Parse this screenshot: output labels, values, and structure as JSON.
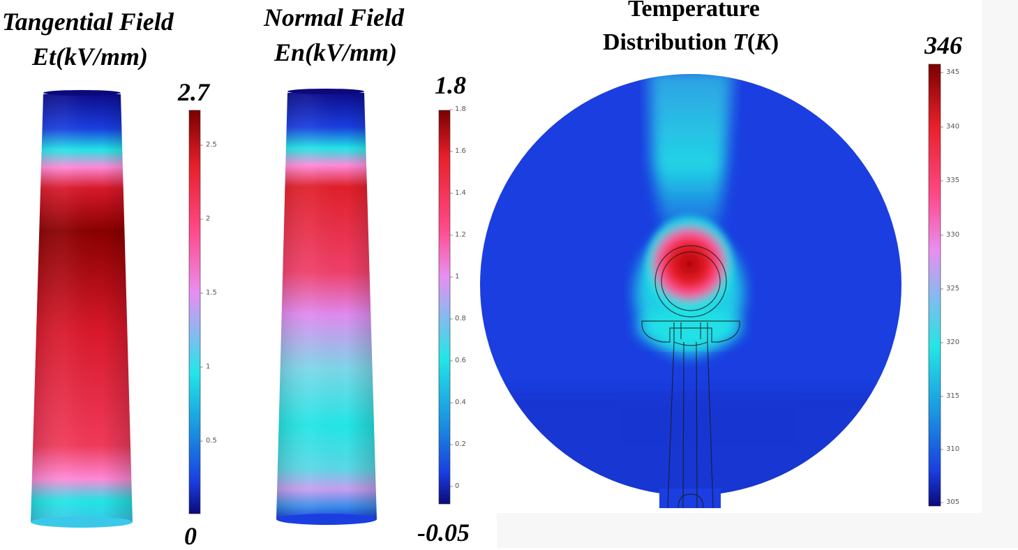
{
  "panels": {
    "tangential": {
      "title_line1": "Tangential Field",
      "title_line2": "Et(kV/mm)",
      "max_label": "2.7",
      "min_label": "0",
      "ticks": [
        "2.5",
        "2",
        "1.5",
        "1",
        "0.5"
      ]
    },
    "normal": {
      "title_line1": "Normal Field",
      "title_line2": "En(kV/mm)",
      "max_label": "1.8",
      "min_label": "-0.05",
      "ticks": [
        "1.8",
        "1.6",
        "1.4",
        "1.2",
        "1",
        "0.8",
        "0.6",
        "0.4",
        "0.2",
        "0"
      ]
    },
    "temperature": {
      "title_line1": "Temperature",
      "title_line2_prefix": "Distribution ",
      "title_line2_var": "T",
      "title_line2_unit_open": "(",
      "title_line2_unit": "K",
      "title_line2_unit_close": ")",
      "max_label": "346",
      "ticks": [
        "345",
        "340",
        "335",
        "330",
        "325",
        "320",
        "315",
        "310",
        "305"
      ]
    }
  },
  "colors": {
    "dark_blue": "#0a0a7a",
    "blue": "#1a3ee0",
    "cyan": "#22e6e6",
    "pink": "#ff6fd0",
    "red": "#e8202a",
    "dark_red": "#7a0000"
  }
}
